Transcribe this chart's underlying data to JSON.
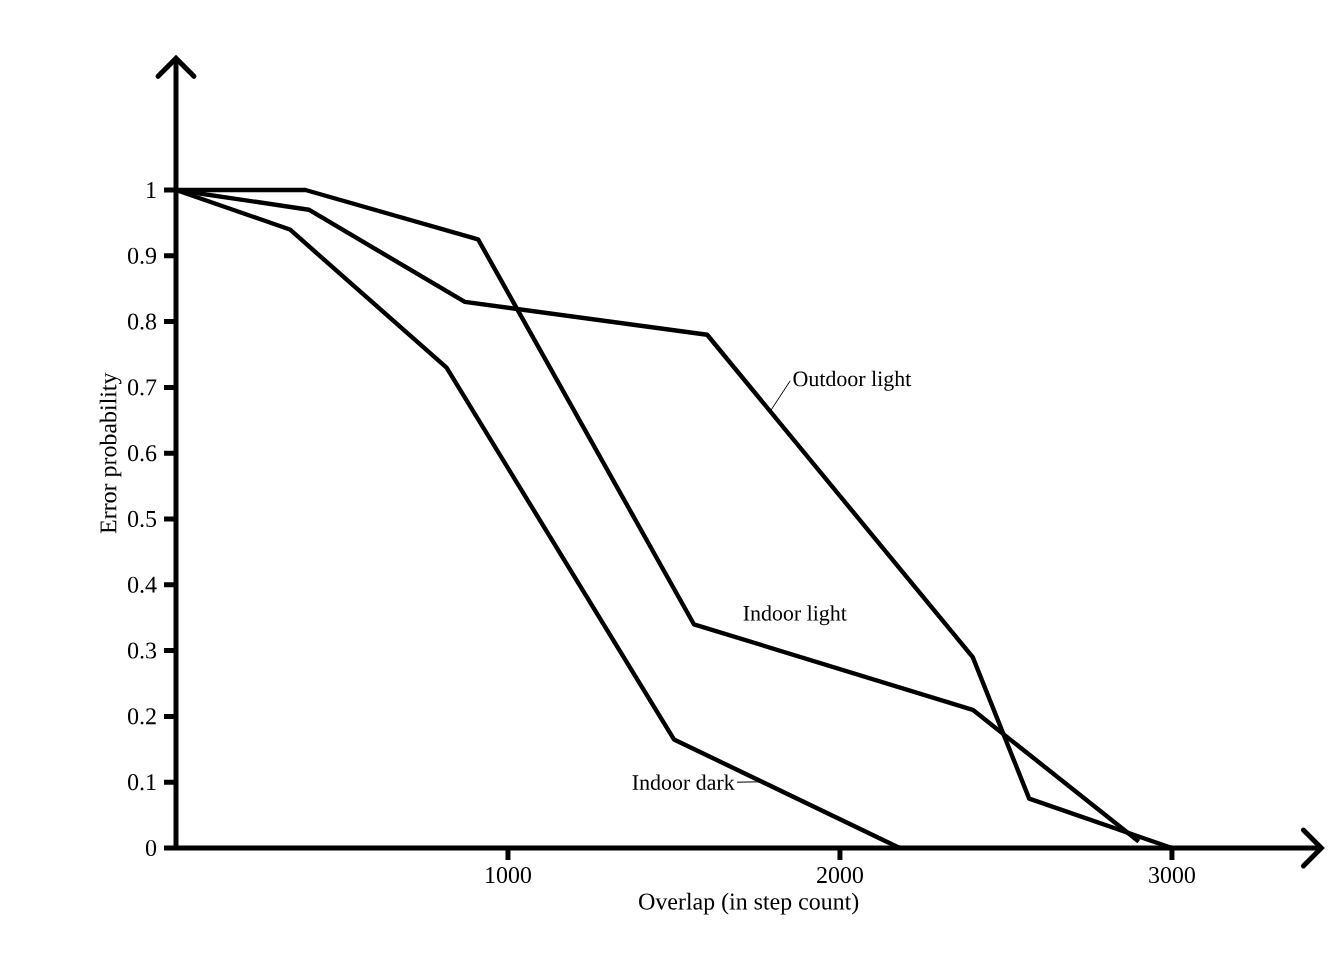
{
  "chart_data": {
    "type": "line",
    "xlabel": "Overlap (in step count)",
    "ylabel": "Error probability",
    "xlim": [
      0,
      3450
    ],
    "ylim": [
      0,
      1.2
    ],
    "xticks": [
      1000,
      2000,
      3000
    ],
    "yticks": [
      0,
      0.1,
      0.2,
      0.3,
      0.4,
      0.5,
      0.6,
      0.7,
      0.8,
      0.9,
      1
    ],
    "marker": "none",
    "line_style": "solid",
    "series": [
      {
        "name": "Indoor dark",
        "color": "#000000",
        "x": [
          0,
          343,
          815,
          1500,
          2180
        ],
        "values": [
          1,
          0.94,
          0.73,
          0.165,
          0
        ]
      },
      {
        "name": "Indoor light",
        "color": "#000000",
        "x": [
          0,
          390,
          910,
          1560,
          2400,
          2900
        ],
        "values": [
          1,
          1,
          0.925,
          0.34,
          0.21,
          0.01
        ]
      },
      {
        "name": "Outdoor light",
        "color": "#000000",
        "x": [
          0,
          400,
          870,
          1600,
          2400,
          2570,
          3000
        ],
        "values": [
          1,
          0.97,
          0.83,
          0.78,
          0.29,
          0.075,
          0
        ]
      }
    ]
  }
}
